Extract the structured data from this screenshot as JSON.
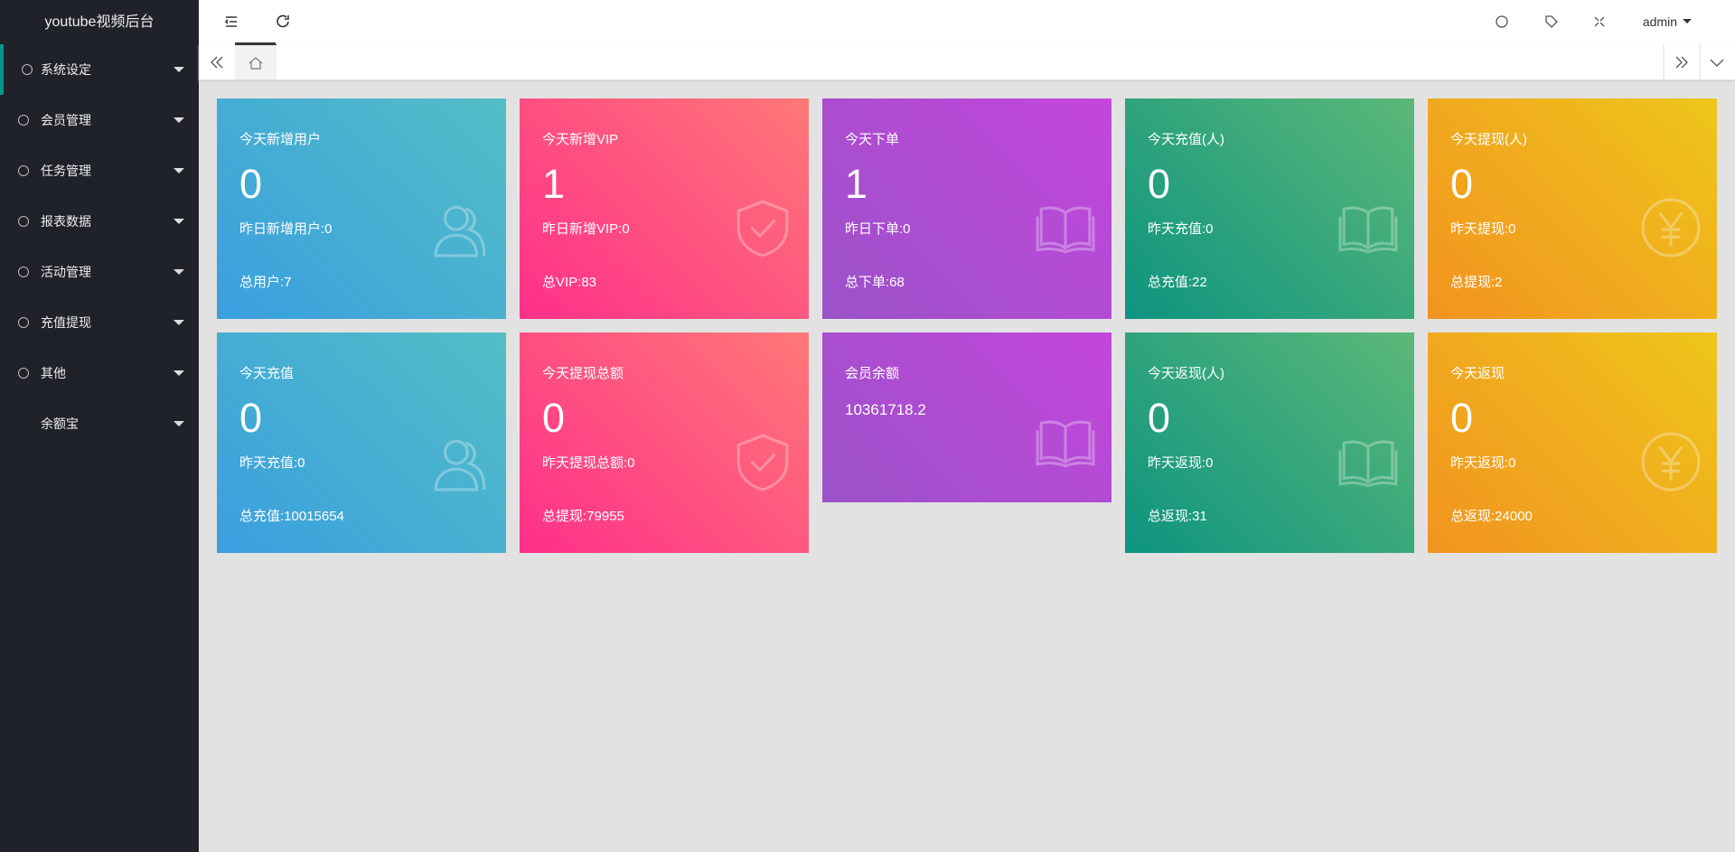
{
  "sidebar": {
    "title": "youtube视频后台",
    "menu": [
      "系统设定",
      "会员管理",
      "任务管理",
      "报表数据",
      "活动管理",
      "充值提现",
      "其他",
      "余额宝"
    ]
  },
  "header": {
    "user": "admin"
  },
  "cards": [
    {
      "title": "今天新增用户",
      "value": 0,
      "yesterday": "昨日新增用户:0",
      "total": "总用户:7"
    },
    {
      "title": "今天新增VIP",
      "value": 1,
      "yesterday": "昨日新增VIP:0",
      "total": "总VIP:83"
    },
    {
      "title": "今天下单",
      "value": 1,
      "yesterday": "昨日下单:0",
      "total": "总下单:68"
    },
    {
      "title": "今天充值(人)",
      "value": 0,
      "yesterday": "昨天充值:0",
      "total": "总充值:22"
    },
    {
      "title": "今天提现(人)",
      "value": 0,
      "yesterday": "昨天提现:0",
      "total": "总提现:2"
    },
    {
      "title": "今天充值",
      "value": 0,
      "yesterday": "昨天充值:0",
      "total": "总充值:10015654"
    },
    {
      "title": "今天提现总额",
      "value": 0,
      "yesterday": "昨天提现总额:0",
      "total": "总提现:79955"
    },
    {
      "title": "会员余额",
      "value": 10361718.2
    },
    {
      "title": "今天返现(人)",
      "value": 0,
      "yesterday": "昨天返现:0",
      "total": "总返现:31"
    },
    {
      "title": "今天返现",
      "value": 0,
      "yesterday": "昨天返现:0",
      "total": "总返现:24000"
    }
  ]
}
